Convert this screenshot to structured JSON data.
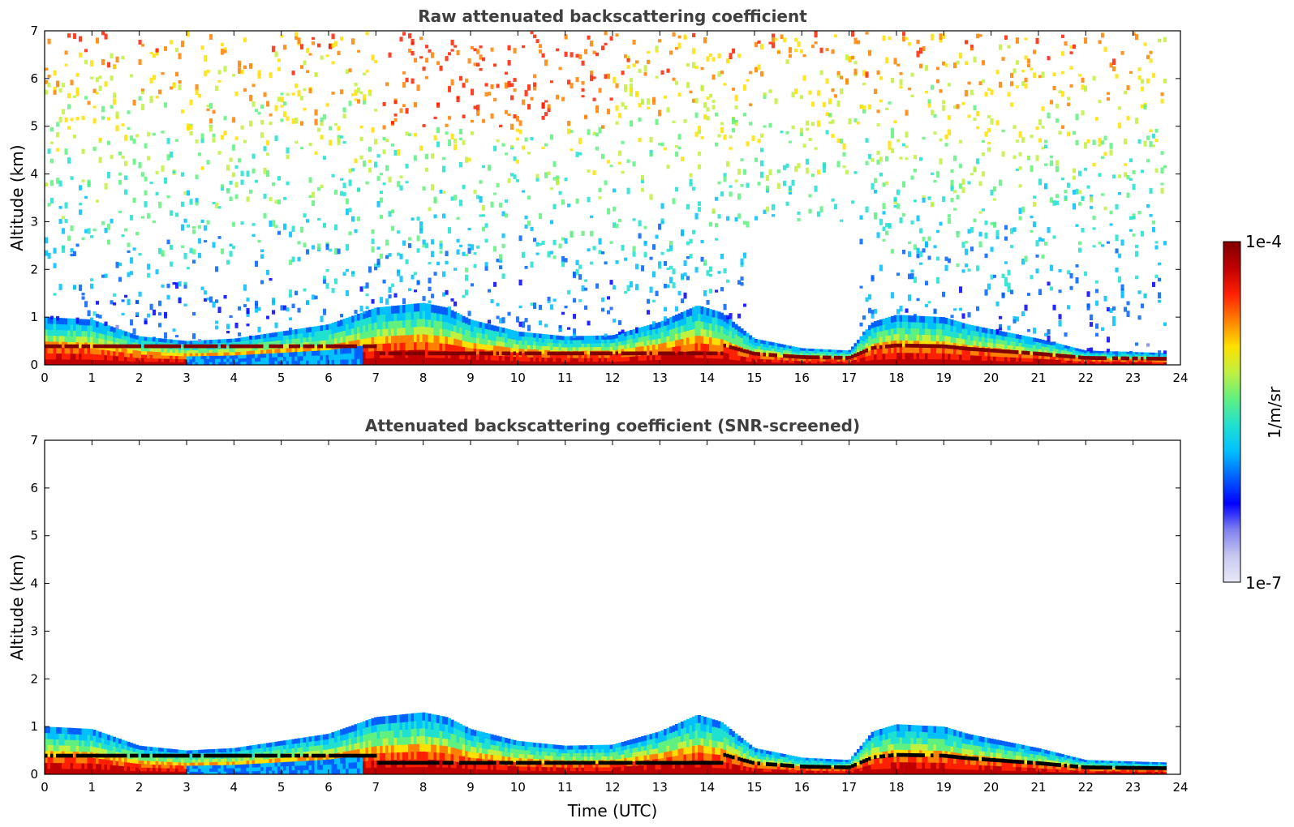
{
  "chart_data": [
    {
      "type": "heatmap",
      "title": "Raw attenuated backscattering coefficient",
      "xlabel": "",
      "ylabel": "Altitude (km)",
      "xlim": [
        0,
        24
      ],
      "ylim": [
        0,
        7
      ],
      "xticks": [
        0,
        1,
        2,
        3,
        4,
        5,
        6,
        7,
        8,
        9,
        10,
        11,
        12,
        13,
        14,
        15,
        16,
        17,
        18,
        19,
        20,
        21,
        22,
        23,
        24
      ],
      "yticks": [
        0,
        1,
        2,
        3,
        4,
        5,
        6,
        7
      ],
      "screened": false,
      "data_end_hour": 23.65,
      "layer_top_km": [
        {
          "t": 0,
          "z": 1.0
        },
        {
          "t": 1,
          "z": 0.95
        },
        {
          "t": 2,
          "z": 0.6
        },
        {
          "t": 3,
          "z": 0.5
        },
        {
          "t": 4,
          "z": 0.55
        },
        {
          "t": 5,
          "z": 0.7
        },
        {
          "t": 6,
          "z": 0.85
        },
        {
          "t": 7,
          "z": 1.2
        },
        {
          "t": 8,
          "z": 1.3
        },
        {
          "t": 8.5,
          "z": 1.2
        },
        {
          "t": 9,
          "z": 0.95
        },
        {
          "t": 10,
          "z": 0.7
        },
        {
          "t": 11,
          "z": 0.6
        },
        {
          "t": 12,
          "z": 0.62
        },
        {
          "t": 13,
          "z": 0.9
        },
        {
          "t": 13.8,
          "z": 1.25
        },
        {
          "t": 14.3,
          "z": 1.1
        },
        {
          "t": 15,
          "z": 0.55
        },
        {
          "t": 16,
          "z": 0.35
        },
        {
          "t": 17,
          "z": 0.3
        },
        {
          "t": 17.5,
          "z": 0.9
        },
        {
          "t": 18,
          "z": 1.05
        },
        {
          "t": 19,
          "z": 1.0
        },
        {
          "t": 19.5,
          "z": 0.85
        },
        {
          "t": 20,
          "z": 0.75
        },
        {
          "t": 21,
          "z": 0.55
        },
        {
          "t": 22,
          "z": 0.3
        },
        {
          "t": 23.65,
          "z": 0.25
        }
      ]
    },
    {
      "type": "heatmap",
      "title": "Attenuated backscattering coefficient (SNR-screened)",
      "xlabel": "Time (UTC)",
      "ylabel": "Altitude (km)",
      "xlim": [
        0,
        24
      ],
      "ylim": [
        0,
        7
      ],
      "xticks": [
        0,
        1,
        2,
        3,
        4,
        5,
        6,
        7,
        8,
        9,
        10,
        11,
        12,
        13,
        14,
        15,
        16,
        17,
        18,
        19,
        20,
        21,
        22,
        23,
        24
      ],
      "yticks": [
        0,
        1,
        2,
        3,
        4,
        5,
        6,
        7
      ],
      "screened": true,
      "data_end_hour": 23.65
    }
  ],
  "colorbar": {
    "label": "1/m/sr",
    "min_label": "1e-7",
    "max_label": "1e-4",
    "colormap": "jet",
    "colors": [
      "#e8e8f8",
      "#c8c8f0",
      "#8080f0",
      "#0000ff",
      "#0060ff",
      "#00c0ff",
      "#20e0d0",
      "#60f080",
      "#c0f040",
      "#ffe000",
      "#ff8000",
      "#ff2000",
      "#c00000",
      "#800000"
    ]
  }
}
